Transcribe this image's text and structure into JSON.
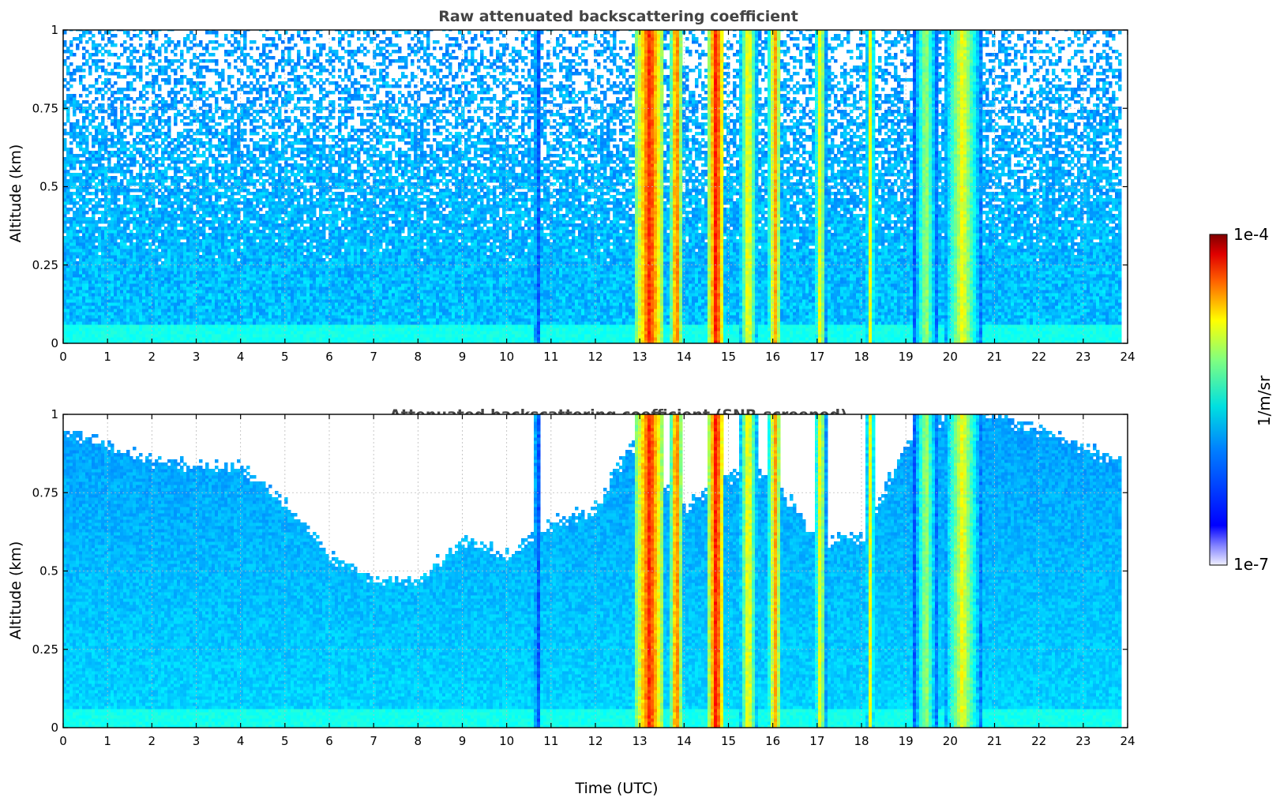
{
  "figure": {
    "colorbar": {
      "max_label": "1e-4",
      "min_label": "1e-7",
      "units_label": "1/m/sr",
      "colormap": "jet",
      "scale": "log"
    }
  },
  "chart_data": [
    {
      "type": "heatmap",
      "title": "Raw attenuated backscattering coefficient",
      "xlabel": "",
      "ylabel": "Altitude (km)",
      "xlim": [
        0,
        24
      ],
      "ylim": [
        0,
        1
      ],
      "x_ticks": [
        "0",
        "1",
        "2",
        "3",
        "4",
        "5",
        "6",
        "7",
        "8",
        "9",
        "10",
        "11",
        "12",
        "13",
        "14",
        "15",
        "16",
        "17",
        "18",
        "19",
        "20",
        "21",
        "22",
        "23",
        "24"
      ],
      "y_ticks": [
        "0",
        "0.25",
        "0.5",
        "0.75",
        "1"
      ],
      "grid": true,
      "value_units": "1/m/sr",
      "color_scale": "log",
      "value_range": [
        1e-07,
        0.0001
      ],
      "data_end_time": 23.8,
      "background_log10": -5.9,
      "cloud_bands": [
        {
          "start": 12.9,
          "end": 13.55,
          "peak_log10": -4.3
        },
        {
          "start": 13.7,
          "end": 13.95,
          "peak_log10": -4.4
        },
        {
          "start": 14.55,
          "end": 14.9,
          "peak_log10": -4.2
        },
        {
          "start": 15.25,
          "end": 15.65,
          "peak_log10": -4.8
        },
        {
          "start": 15.9,
          "end": 16.2,
          "peak_log10": -4.6
        },
        {
          "start": 16.95,
          "end": 17.2,
          "peak_log10": -4.8
        },
        {
          "start": 18.1,
          "end": 18.3,
          "peak_log10": -4.9
        },
        {
          "start": 19.15,
          "end": 19.75,
          "peak_log10": -5.1
        },
        {
          "start": 19.85,
          "end": 20.7,
          "peak_log10": -4.9
        },
        {
          "start": 10.6,
          "end": 10.75,
          "peak_log10": -5.4
        }
      ]
    },
    {
      "type": "heatmap",
      "title": "Attenuated backscattering coefficient (SNR-screened)",
      "xlabel": "Time (UTC)",
      "ylabel": "Altitude (km)",
      "xlim": [
        0,
        24
      ],
      "ylim": [
        0,
        1
      ],
      "x_ticks": [
        "0",
        "1",
        "2",
        "3",
        "4",
        "5",
        "6",
        "7",
        "8",
        "9",
        "10",
        "11",
        "12",
        "13",
        "14",
        "15",
        "16",
        "17",
        "18",
        "19",
        "20",
        "21",
        "22",
        "23",
        "24"
      ],
      "y_ticks": [
        "0",
        "0.25",
        "0.5",
        "0.75",
        "1"
      ],
      "grid": true,
      "value_units": "1/m/sr",
      "color_scale": "log",
      "value_range": [
        1e-07,
        0.0001
      ],
      "data_end_time": 23.8,
      "background_log10": -5.9,
      "screened_top_altitude": {
        "time": [
          0,
          1,
          2,
          3,
          4,
          5,
          6,
          7,
          8,
          9,
          10,
          11,
          12,
          12.8,
          14,
          15,
          16,
          17,
          18,
          19,
          20,
          21,
          22,
          23,
          23.8
        ],
        "altitude": [
          0.95,
          0.9,
          0.85,
          0.84,
          0.83,
          0.72,
          0.55,
          0.47,
          0.47,
          0.6,
          0.55,
          0.65,
          0.7,
          0.9,
          0.7,
          0.8,
          0.8,
          0.6,
          0.6,
          0.9,
          1,
          1,
          0.95,
          0.9,
          0.85
        ]
      },
      "cloud_bands": [
        {
          "start": 12.9,
          "end": 13.55,
          "peak_log10": -4.3
        },
        {
          "start": 13.7,
          "end": 13.95,
          "peak_log10": -4.4
        },
        {
          "start": 14.55,
          "end": 14.9,
          "peak_log10": -4.2
        },
        {
          "start": 15.25,
          "end": 15.65,
          "peak_log10": -4.8
        },
        {
          "start": 15.9,
          "end": 16.2,
          "peak_log10": -4.6
        },
        {
          "start": 16.95,
          "end": 17.2,
          "peak_log10": -4.8
        },
        {
          "start": 18.1,
          "end": 18.3,
          "peak_log10": -4.9
        },
        {
          "start": 19.15,
          "end": 19.75,
          "peak_log10": -5.1
        },
        {
          "start": 19.85,
          "end": 20.7,
          "peak_log10": -4.9
        },
        {
          "start": 10.6,
          "end": 10.75,
          "peak_log10": -5.4
        }
      ]
    }
  ]
}
